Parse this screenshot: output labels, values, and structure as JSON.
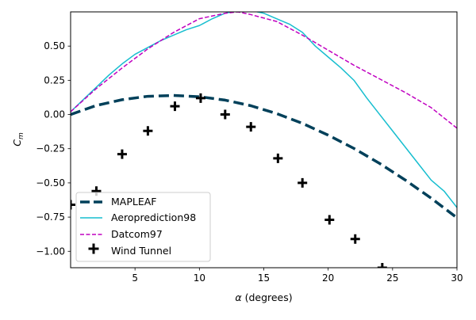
{
  "chart_data": {
    "type": "line",
    "xlabel_greek": "α",
    "xlabel_rest": " (degrees)",
    "ylabel_main": "C",
    "ylabel_sub": "m",
    "xlim": [
      0.0,
      30
    ],
    "ylim": [
      -1.12,
      0.75
    ],
    "x_ticks": [
      5,
      10,
      15,
      20,
      25,
      30
    ],
    "x_tick_labels": [
      "5",
      "10",
      "15",
      "20",
      "25",
      "30"
    ],
    "y_ticks": [
      0.5,
      0.25,
      0.0,
      -0.25,
      -0.5,
      -0.75,
      -1.0
    ],
    "y_tick_labels": [
      "0.50",
      "0.25",
      "0.00",
      "−0.25",
      "−0.50",
      "−0.75",
      "−1.00"
    ],
    "legend_position": "lower-left",
    "series": [
      {
        "name": "MAPLEAF",
        "style": "thick-dashed",
        "color": "#00405a",
        "x": [
          0,
          2,
          4,
          6,
          8,
          10,
          12,
          14,
          16,
          18,
          20,
          22,
          24,
          26,
          28,
          30
        ],
        "y": [
          0.0,
          0.066,
          0.108,
          0.133,
          0.139,
          0.13,
          0.105,
          0.064,
          0.007,
          -0.065,
          -0.151,
          -0.248,
          -0.358,
          -0.48,
          -0.612,
          -0.755
        ]
      },
      {
        "name": "Aeroprediction98",
        "style": "solid",
        "color": "#17becf",
        "x": [
          0,
          1,
          2,
          3,
          4,
          5,
          6,
          7,
          8,
          9,
          10,
          11,
          12,
          13,
          14,
          15,
          16,
          17,
          18,
          19,
          20,
          21,
          22,
          23,
          24,
          25,
          26,
          27,
          28,
          29,
          30
        ],
        "y": [
          0.02,
          0.11,
          0.2,
          0.29,
          0.37,
          0.44,
          0.49,
          0.54,
          0.58,
          0.62,
          0.65,
          0.7,
          0.74,
          0.76,
          0.76,
          0.74,
          0.7,
          0.66,
          0.6,
          0.5,
          0.42,
          0.34,
          0.25,
          0.12,
          0.0,
          -0.12,
          -0.24,
          -0.36,
          -0.48,
          -0.56,
          -0.68
        ]
      },
      {
        "name": "Datcom97",
        "style": "dashed",
        "color": "#c000c0",
        "x": [
          0,
          2,
          4,
          6,
          8,
          10,
          12,
          13,
          14,
          16,
          18,
          20,
          22,
          24,
          26,
          28,
          30
        ],
        "y": [
          0.02,
          0.19,
          0.34,
          0.48,
          0.6,
          0.7,
          0.74,
          0.75,
          0.73,
          0.68,
          0.58,
          0.47,
          0.36,
          0.26,
          0.16,
          0.05,
          -0.1
        ]
      },
      {
        "name": "Wind Tunnel",
        "style": "plus-markers",
        "color": "#000000",
        "x": [
          0,
          2,
          4,
          6,
          8.1,
          10.1,
          12,
          14,
          16.1,
          18,
          20.1,
          22.1,
          24.2
        ],
        "y": [
          -0.66,
          -0.56,
          -0.29,
          -0.12,
          0.06,
          0.12,
          0.0,
          -0.09,
          -0.32,
          -0.5,
          -0.77,
          -0.91,
          -1.12
        ]
      }
    ]
  }
}
